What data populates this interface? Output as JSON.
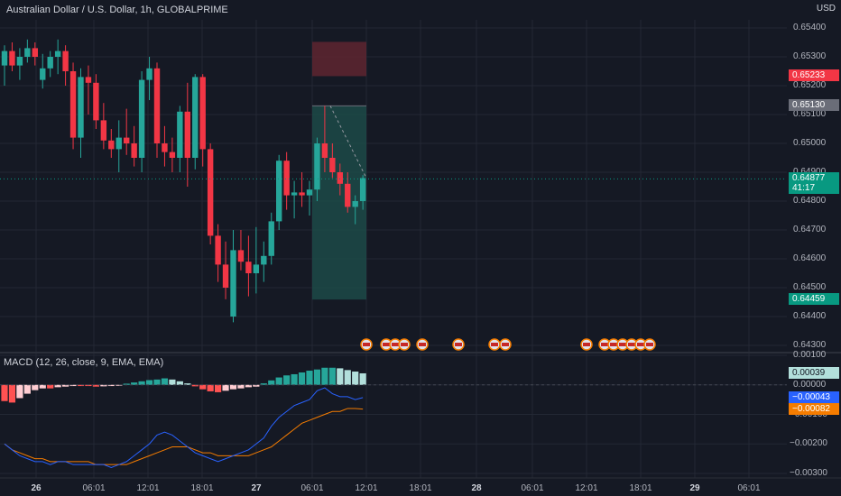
{
  "symbol_title": "Australian Dollar / U.S. Dollar, 1h, GLOBALPRIME",
  "currency_label": "USD",
  "colors": {
    "bg": "#151924",
    "up": "#26a69a",
    "down": "#f23645",
    "grid": "#232834",
    "macd": "#2962ff",
    "signal": "#f57c00"
  },
  "price_axis": [
    {
      "label": "0.65400",
      "v": 0.654
    },
    {
      "label": "0.65300",
      "v": 0.653
    },
    {
      "label": "0.65200",
      "v": 0.652
    },
    {
      "label": "0.65100",
      "v": 0.651
    },
    {
      "label": "0.65000",
      "v": 0.65
    },
    {
      "label": "0.64900",
      "v": 0.649
    },
    {
      "label": "0.64800",
      "v": 0.648
    },
    {
      "label": "0.64700",
      "v": 0.647
    },
    {
      "label": "0.64600",
      "v": 0.646
    },
    {
      "label": "0.64500",
      "v": 0.645
    },
    {
      "label": "0.64400",
      "v": 0.644
    },
    {
      "label": "0.64300",
      "v": 0.643
    }
  ],
  "price_tags": {
    "stop": {
      "label": "0.65233",
      "color": "#f23645",
      "v": 0.65233
    },
    "entry": {
      "label": "0.65130",
      "color": "#6a6d78",
      "v": 0.6513
    },
    "last": {
      "label": "0.64877",
      "countdown": "41:17",
      "color": "#089981",
      "v": 0.64877
    },
    "target": {
      "label": "0.64459",
      "color": "#089981",
      "v": 0.64459
    }
  },
  "macd_title": "MACD (12, 26, close, 9, EMA, EMA)",
  "macd_axis": [
    {
      "label": "0.00100",
      "v": 0.001
    },
    {
      "label": "0.00000",
      "v": 0.0
    },
    {
      "label": "−0.00100",
      "v": -0.001
    },
    {
      "label": "−0.00200",
      "v": -0.002
    },
    {
      "label": "−0.00300",
      "v": -0.003
    }
  ],
  "macd_tags": {
    "hist": {
      "label": "0.00039",
      "color": "#b2dfdb",
      "v": 0.00039
    },
    "macd": {
      "label": "−0.00043",
      "color": "#2962ff",
      "v": -0.00043
    },
    "signal": {
      "label": "−0.00082",
      "color": "#f57c00",
      "v": -0.00082
    }
  },
  "time_axis": [
    {
      "label": "26",
      "bold": true
    },
    {
      "label": "06:01"
    },
    {
      "label": "12:01"
    },
    {
      "label": "18:01"
    },
    {
      "label": "27",
      "bold": true
    },
    {
      "label": "06:01"
    },
    {
      "label": "12:01"
    },
    {
      "label": "18:01"
    },
    {
      "label": "28",
      "bold": true
    },
    {
      "label": "06:01"
    },
    {
      "label": "12:01"
    },
    {
      "label": "18:01"
    },
    {
      "label": "29",
      "bold": true
    },
    {
      "label": "06:01"
    }
  ],
  "chart_data": {
    "type": "candlestick",
    "candles": [
      [
        0.6527,
        0.6534,
        0.652,
        0.6532
      ],
      [
        0.6532,
        0.6535,
        0.6525,
        0.6527
      ],
      [
        0.6527,
        0.6533,
        0.6522,
        0.653
      ],
      [
        0.653,
        0.6536,
        0.6528,
        0.6533
      ],
      [
        0.6533,
        0.6535,
        0.6527,
        0.653
      ],
      [
        0.6522,
        0.6531,
        0.6519,
        0.6526
      ],
      [
        0.6526,
        0.6532,
        0.6523,
        0.653
      ],
      [
        0.653,
        0.6536,
        0.6524,
        0.6532
      ],
      [
        0.6532,
        0.6534,
        0.652,
        0.6525
      ],
      [
        0.6525,
        0.6528,
        0.6498,
        0.6502
      ],
      [
        0.6502,
        0.6526,
        0.6495,
        0.6523
      ],
      [
        0.6523,
        0.6527,
        0.651,
        0.6521
      ],
      [
        0.6521,
        0.6524,
        0.6505,
        0.6508
      ],
      [
        0.6508,
        0.6514,
        0.6498,
        0.6501
      ],
      [
        0.6501,
        0.6505,
        0.6495,
        0.6498
      ],
      [
        0.6498,
        0.6508,
        0.649,
        0.6502
      ],
      [
        0.6502,
        0.6512,
        0.6496,
        0.65
      ],
      [
        0.65,
        0.6506,
        0.6492,
        0.6495
      ],
      [
        0.6495,
        0.6525,
        0.649,
        0.6522
      ],
      [
        0.6522,
        0.653,
        0.6515,
        0.6526
      ],
      [
        0.6526,
        0.6528,
        0.6495,
        0.65
      ],
      [
        0.65,
        0.6506,
        0.6492,
        0.6497
      ],
      [
        0.6497,
        0.6502,
        0.649,
        0.6495
      ],
      [
        0.6495,
        0.6513,
        0.649,
        0.6511
      ],
      [
        0.6511,
        0.6521,
        0.6485,
        0.6495
      ],
      [
        0.6495,
        0.6524,
        0.6491,
        0.6523
      ],
      [
        0.6523,
        0.6524,
        0.6492,
        0.6498
      ],
      [
        0.6498,
        0.65,
        0.6465,
        0.6468
      ],
      [
        0.6468,
        0.6472,
        0.6452,
        0.6458
      ],
      [
        0.6458,
        0.6466,
        0.6446,
        0.645
      ],
      [
        0.644,
        0.647,
        0.6438,
        0.6463
      ],
      [
        0.6463,
        0.647,
        0.6456,
        0.6459
      ],
      [
        0.6459,
        0.6468,
        0.6447,
        0.6455
      ],
      [
        0.6455,
        0.6471,
        0.6448,
        0.6458
      ],
      [
        0.6458,
        0.6466,
        0.6452,
        0.6461
      ],
      [
        0.6461,
        0.6476,
        0.6458,
        0.6473
      ],
      [
        0.6473,
        0.6496,
        0.647,
        0.6494
      ],
      [
        0.6494,
        0.6497,
        0.6477,
        0.6482
      ],
      [
        0.6482,
        0.6487,
        0.6474,
        0.6483
      ],
      [
        0.6483,
        0.649,
        0.6478,
        0.6482
      ],
      [
        0.6482,
        0.6487,
        0.6475,
        0.6484
      ],
      [
        0.6484,
        0.6502,
        0.648,
        0.65
      ],
      [
        0.65,
        0.6513,
        0.649,
        0.6495
      ],
      [
        0.6495,
        0.65,
        0.6488,
        0.649
      ],
      [
        0.649,
        0.6493,
        0.6482,
        0.6486
      ],
      [
        0.6486,
        0.649,
        0.6476,
        0.6478
      ],
      [
        0.6478,
        0.6482,
        0.6472,
        0.648
      ],
      [
        0.648,
        0.6489,
        0.6477,
        0.6488
      ]
    ],
    "position": {
      "type": "short",
      "entry": 0.6513,
      "stop": 0.65233,
      "target": 0.64459
    }
  }
}
